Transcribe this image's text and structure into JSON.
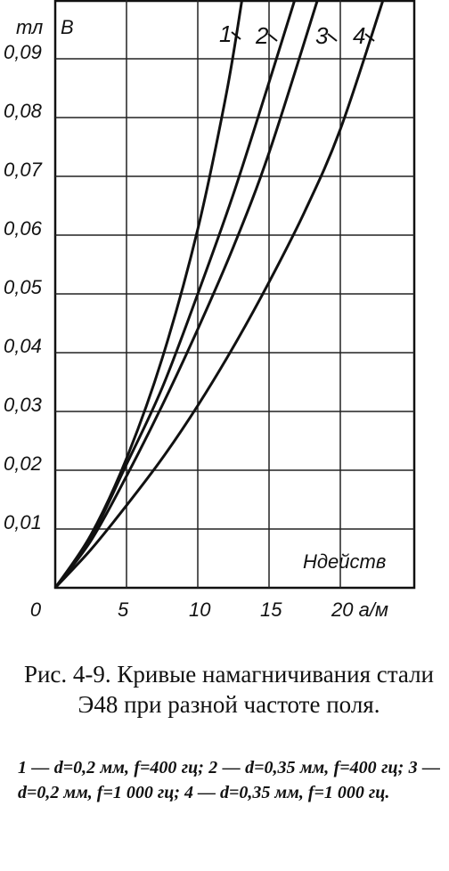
{
  "chart_data": {
    "type": "line",
    "y_label": "тл",
    "y_symbol": "B",
    "x_label": "Hдейств",
    "xlim": [
      0,
      25
    ],
    "ylim": [
      0,
      0.1
    ],
    "xticks": [
      0,
      5,
      10,
      15,
      {
        "value": 20,
        "label": "20 а/м"
      }
    ],
    "yticks": [
      {
        "value": 0.01,
        "label": "0,01"
      },
      {
        "value": 0.02,
        "label": "0,02"
      },
      {
        "value": 0.03,
        "label": "0,03"
      },
      {
        "value": 0.04,
        "label": "0,04"
      },
      {
        "value": 0.05,
        "label": "0,05"
      },
      {
        "value": 0.06,
        "label": "0,06"
      },
      {
        "value": 0.07,
        "label": "0,07"
      },
      {
        "value": 0.08,
        "label": "0,08"
      },
      {
        "value": 0.09,
        "label": "0,09"
      }
    ],
    "grid": true,
    "series": [
      {
        "name": "1",
        "color": "#111111",
        "x": [
          0,
          2.5,
          5,
          7.5,
          10,
          12,
          13.1
        ],
        "values": [
          0,
          0.009,
          0.022,
          0.039,
          0.061,
          0.084,
          0.1
        ]
      },
      {
        "name": "2",
        "color": "#111111",
        "x": [
          0,
          2.5,
          5,
          7.5,
          10,
          12.5,
          15,
          16.8
        ],
        "values": [
          0,
          0.0085,
          0.021,
          0.034,
          0.05,
          0.067,
          0.086,
          0.1
        ]
      },
      {
        "name": "3",
        "color": "#111111",
        "x": [
          0,
          2.5,
          5,
          7.5,
          10,
          12.5,
          15,
          18.4
        ],
        "values": [
          0,
          0.008,
          0.019,
          0.031,
          0.044,
          0.058,
          0.074,
          0.1
        ]
      },
      {
        "name": "4",
        "color": "#111111",
        "x": [
          0,
          2.5,
          5,
          7.5,
          10,
          12.5,
          15,
          17.5,
          20,
          23
        ],
        "values": [
          0,
          0.0065,
          0.014,
          0.022,
          0.031,
          0.041,
          0.052,
          0.064,
          0.078,
          0.1
        ]
      }
    ],
    "caption": "Рис. 4-9. Кривые намагничивания стали Э48 при разной частоте поля.",
    "notes": "1 — d=0,2 мм, f=400 гц; 2 — d=0,35 мм, f=400 гц; 3 — d=0,2 мм, f=1 000 гц; 4 — d=0,35 мм, f=1 000 гц."
  }
}
